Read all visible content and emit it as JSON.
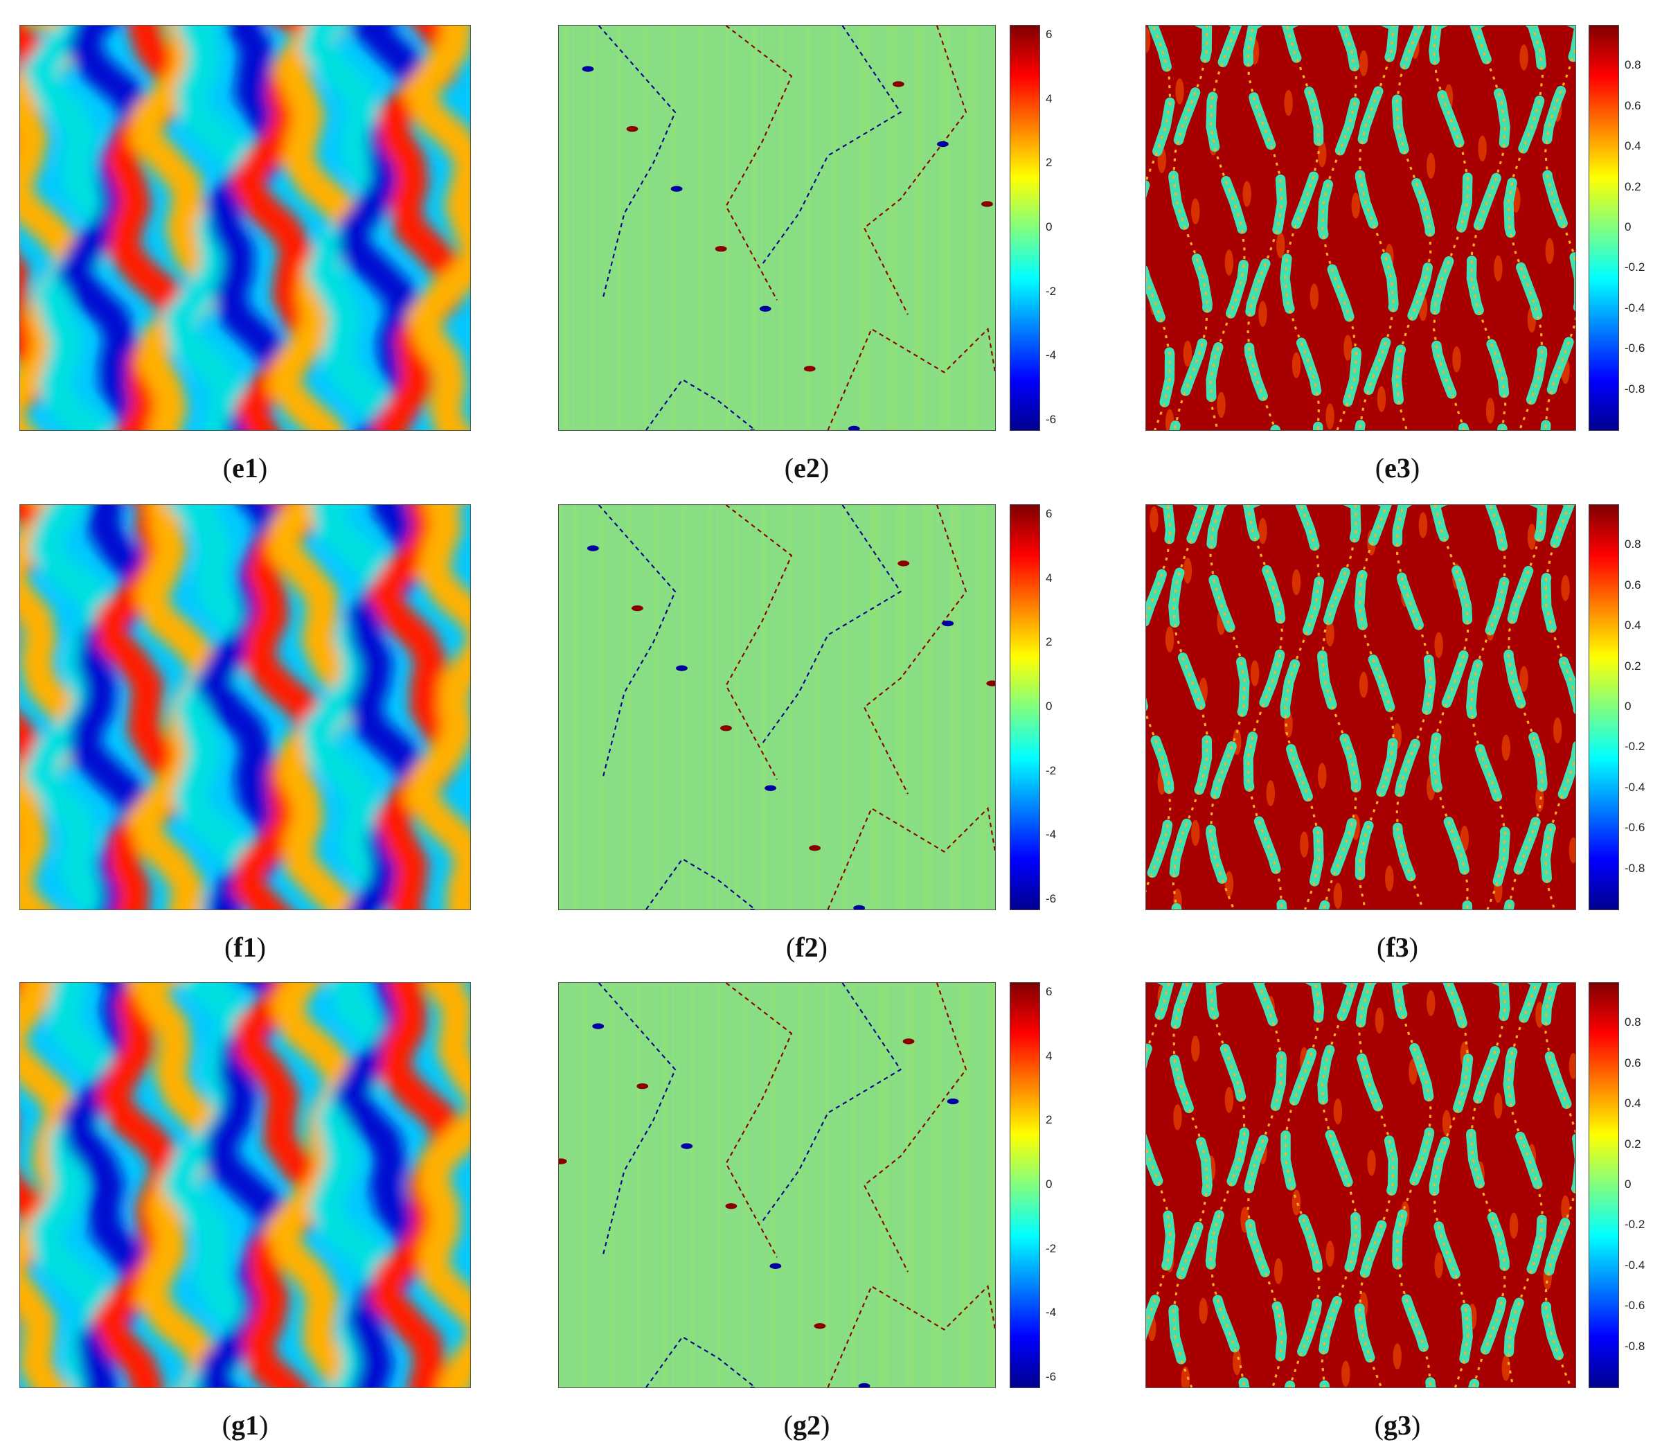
{
  "figure": {
    "rows": [
      {
        "id": "e",
        "panels": [
          {
            "caption_open": "(",
            "caption_label": "e1",
            "caption_close": ")",
            "kind": "wrapped"
          },
          {
            "caption_open": "(",
            "caption_label": "e2",
            "caption_close": ")",
            "kind": "unwrapped",
            "colorbar_ticks": [
              "6",
              "4",
              "2",
              "0",
              "-2",
              "-4",
              "-6"
            ],
            "colorbar_range": [
              -6.3,
              6.3
            ]
          },
          {
            "caption_open": "(",
            "caption_label": "e3",
            "caption_close": ")",
            "kind": "quality",
            "colorbar_ticks": [
              "0.8",
              "0.6",
              "0.4",
              "0.2",
              "0",
              "-0.2",
              "-0.4",
              "-0.6",
              "-0.8"
            ],
            "colorbar_range": [
              -1,
              1
            ]
          }
        ]
      },
      {
        "id": "f",
        "panels": [
          {
            "caption_open": "(",
            "caption_label": "f1",
            "caption_close": ")",
            "kind": "wrapped"
          },
          {
            "caption_open": "(",
            "caption_label": "f2",
            "caption_close": ")",
            "kind": "unwrapped",
            "colorbar_ticks": [
              "6",
              "4",
              "2",
              "0",
              "-2",
              "-4",
              "-6"
            ],
            "colorbar_range": [
              -6.3,
              6.3
            ]
          },
          {
            "caption_open": "(",
            "caption_label": "f3",
            "caption_close": ")",
            "kind": "quality",
            "colorbar_ticks": [
              "0.8",
              "0.6",
              "0.4",
              "0.2",
              "0",
              "-0.2",
              "-0.4",
              "-0.6",
              "-0.8"
            ],
            "colorbar_range": [
              -1,
              1
            ]
          }
        ]
      },
      {
        "id": "g",
        "panels": [
          {
            "caption_open": "(",
            "caption_label": "g1",
            "caption_close": ")",
            "kind": "wrapped"
          },
          {
            "caption_open": "(",
            "caption_label": "g2",
            "caption_close": ")",
            "kind": "unwrapped",
            "colorbar_ticks": [
              "6",
              "4",
              "2",
              "0",
              "-2",
              "-4",
              "-6"
            ],
            "colorbar_range": [
              -6.3,
              6.3
            ]
          },
          {
            "caption_open": "(",
            "caption_label": "g3",
            "caption_close": ")",
            "kind": "quality",
            "colorbar_ticks": [
              "0.8",
              "0.6",
              "0.4",
              "0.2",
              "0",
              "-0.2",
              "-0.4",
              "-0.6",
              "-0.8"
            ],
            "colorbar_range": [
              -1,
              1
            ]
          }
        ]
      }
    ],
    "colormap": "jet"
  }
}
